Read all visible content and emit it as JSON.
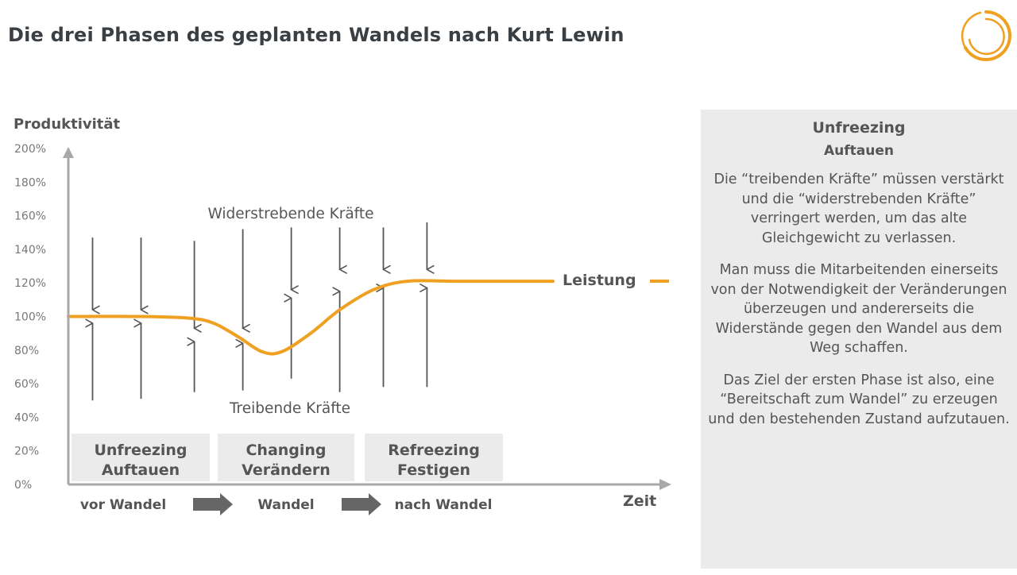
{
  "title": "Die drei Phasen des geplanten Wandels nach Kurt Lewin",
  "colors": {
    "accent": "#f0a020",
    "arrow": "#555555",
    "phase_box": "#ebebeb",
    "panel_bg": "#ebebeb",
    "text": "#444444"
  },
  "chart_data": {
    "type": "line",
    "ylabel": "Produktivität",
    "xlabel": "Zeit",
    "y_ticks": [
      "0%",
      "20%",
      "40%",
      "60%",
      "80%",
      "100%",
      "120%",
      "140%",
      "160%",
      "180%",
      "200%"
    ],
    "ylim": [
      0,
      200
    ],
    "series": [
      {
        "name": "Leistung",
        "points": [
          [
            0,
            100
          ],
          [
            0.15,
            100
          ],
          [
            0.25,
            99
          ],
          [
            0.3,
            96
          ],
          [
            0.35,
            88
          ],
          [
            0.4,
            79
          ],
          [
            0.44,
            79
          ],
          [
            0.5,
            90
          ],
          [
            0.56,
            104
          ],
          [
            0.63,
            116
          ],
          [
            0.7,
            121
          ],
          [
            0.8,
            121
          ],
          [
            0.9,
            121
          ],
          [
            1.0,
            121
          ]
        ]
      }
    ],
    "annotation_top": "Widerstrebende Kräfte",
    "annotation_bottom": "Treibende Kräfte",
    "force_arrows": [
      {
        "x": 0.05,
        "down_from": 147,
        "down_to": 104,
        "up_from": 50,
        "up_to": 96
      },
      {
        "x": 0.15,
        "down_from": 147,
        "down_to": 104,
        "up_from": 51,
        "up_to": 96
      },
      {
        "x": 0.26,
        "down_from": 145,
        "down_to": 93,
        "up_from": 55,
        "up_to": 85
      },
      {
        "x": 0.36,
        "down_from": 152,
        "down_to": 93,
        "up_from": 56,
        "up_to": 84
      },
      {
        "x": 0.46,
        "down_from": 153,
        "down_to": 116,
        "up_from": 63,
        "up_to": 111
      },
      {
        "x": 0.56,
        "down_from": 153,
        "down_to": 128,
        "up_from": 55,
        "up_to": 115
      },
      {
        "x": 0.65,
        "down_from": 153,
        "down_to": 128,
        "up_from": 58,
        "up_to": 117
      },
      {
        "x": 0.74,
        "down_from": 156,
        "down_to": 128,
        "up_from": 58,
        "up_to": 117
      }
    ],
    "phases": [
      {
        "line1": "Unfreezing",
        "line2": "Auftauen"
      },
      {
        "line1": "Changing",
        "line2": "Verändern"
      },
      {
        "line1": "Refreezing",
        "line2": "Festigen"
      }
    ],
    "timeline": [
      "vor Wandel",
      "Wandel",
      "nach Wandel"
    ],
    "legend_label": "Leistung"
  },
  "panel": {
    "title": "Unfreezing",
    "subtitle": "Auftauen",
    "paragraphs": [
      "Die “treibenden Kräfte” müssen verstärkt und die “widerstrebenden Kräfte” verringert werden, um das alte Gleichgewicht zu verlassen.",
      "Man muss die Mitarbeitenden einerseits von der Notwendigkeit der Veränderungen überzeugen und andererseits die Widerstände gegen den Wandel aus dem Weg schaffen.",
      "Das Ziel der ersten Phase ist also, eine “Bereitschaft zum Wandel” zu erzeugen und den bestehenden Zustand aufzutauen."
    ]
  }
}
